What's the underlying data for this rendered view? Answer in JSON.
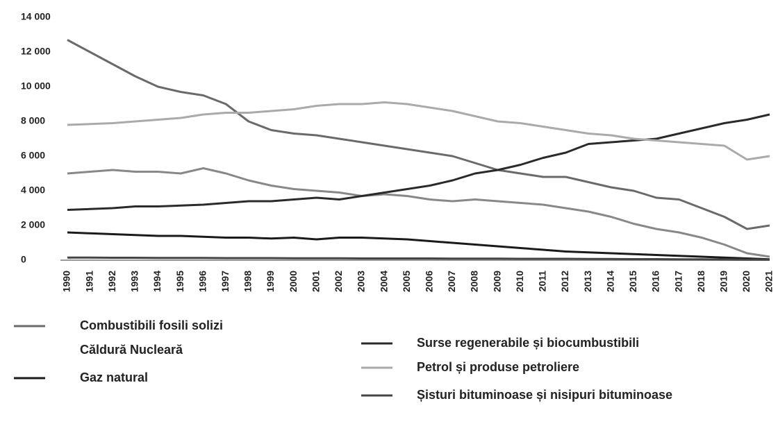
{
  "chart_data": {
    "type": "line",
    "x": [
      "1990",
      "1991",
      "1992",
      "1993",
      "1994",
      "1995",
      "1996",
      "1997",
      "1998",
      "1999",
      "2000",
      "2001",
      "2002",
      "2003",
      "2004",
      "2005",
      "2006",
      "2007",
      "2008",
      "2009",
      "2010",
      "2011",
      "2012",
      "2013",
      "2014",
      "2015",
      "2016",
      "2017",
      "2018",
      "2019",
      "2020",
      "2021"
    ],
    "ylim": [
      0,
      14000
    ],
    "yticks": [
      0,
      {
        "value": 2000,
        "label": "2 000"
      },
      {
        "value": 4000,
        "label": "4 000"
      },
      {
        "value": 6000,
        "label": "6 000"
      },
      {
        "value": 8000,
        "label": "8 000"
      },
      {
        "value": 10000,
        "label": "10 000"
      },
      {
        "value": 12000,
        "label": "12 000"
      },
      {
        "value": 14000,
        "label": "14 000"
      }
    ],
    "series": [
      {
        "name": "Combustibili fosili solizi",
        "color": "#6a6a6a",
        "values": [
          12700,
          12000,
          11300,
          10600,
          10000,
          9700,
          9500,
          9000,
          8000,
          7500,
          7300,
          7200,
          7000,
          6800,
          6600,
          6400,
          6200,
          6000,
          5600,
          5200,
          5000,
          4800,
          4800,
          4500,
          4200,
          4000,
          3600,
          3500,
          3000,
          2500,
          1800,
          2000
        ]
      },
      {
        "name": "Căldură Nucleară",
        "color": "#888888",
        "values": [
          5000,
          5100,
          5200,
          5100,
          5100,
          5000,
          5300,
          5000,
          4600,
          4300,
          4100,
          4000,
          3900,
          3700,
          3800,
          3700,
          3500,
          3400,
          3500,
          3400,
          3300,
          3200,
          3000,
          2800,
          2500,
          2100,
          1800,
          1600,
          1300,
          900,
          400,
          200
        ]
      },
      {
        "name": "Gaz natural",
        "color": "#1a1a1a",
        "values": [
          1600,
          1550,
          1500,
          1450,
          1400,
          1400,
          1350,
          1300,
          1300,
          1250,
          1300,
          1200,
          1300,
          1300,
          1250,
          1200,
          1100,
          1000,
          900,
          800,
          700,
          600,
          500,
          450,
          400,
          350,
          300,
          250,
          200,
          150,
          100,
          50
        ]
      },
      {
        "name": "Surse regenerabile și biocumbustibili",
        "color": "#2a2a2a",
        "values": [
          2900,
          2950,
          3000,
          3100,
          3100,
          3150,
          3200,
          3300,
          3400,
          3400,
          3500,
          3600,
          3500,
          3700,
          3900,
          4100,
          4300,
          4600,
          5000,
          5200,
          5500,
          5900,
          6200,
          6700,
          6800,
          6900,
          7000,
          7300,
          7600,
          7900,
          8100,
          8400
        ]
      },
      {
        "name": "Petrol și produse petroliere",
        "color": "#aaaaaa",
        "values": [
          7800,
          7850,
          7900,
          8000,
          8100,
          8200,
          8400,
          8500,
          8500,
          8600,
          8700,
          8900,
          9000,
          9000,
          9100,
          9000,
          8800,
          8600,
          8300,
          8000,
          7900,
          7700,
          7500,
          7300,
          7200,
          7000,
          6900,
          6800,
          6700,
          6600,
          5800,
          6000
        ]
      },
      {
        "name": "Șisturi bituminoase și nisipuri bituminoase",
        "color": "#444444",
        "values": [
          150,
          150,
          140,
          140,
          130,
          130,
          130,
          120,
          120,
          120,
          110,
          110,
          110,
          100,
          100,
          100,
          100,
          90,
          90,
          90,
          80,
          80,
          80,
          70,
          70,
          60,
          60,
          50,
          50,
          40,
          30,
          30
        ]
      }
    ]
  }
}
